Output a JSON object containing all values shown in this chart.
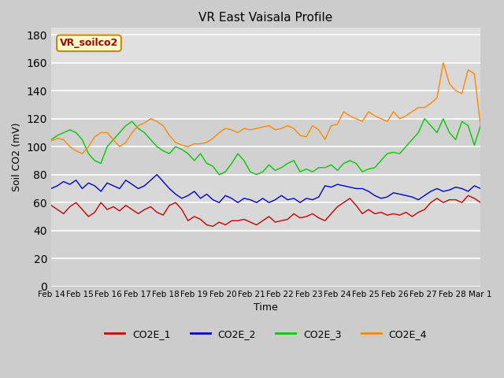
{
  "title": "VR East Vaisala Profile",
  "xlabel": "Time",
  "ylabel": "Soil CO2 (mV)",
  "ylim": [
    0,
    185
  ],
  "yticks": [
    0,
    20,
    40,
    60,
    80,
    100,
    120,
    140,
    160,
    180
  ],
  "annotation": "VR_soilco2",
  "series_colors": [
    "#cc0000",
    "#0000cc",
    "#00cc00",
    "#ff8800"
  ],
  "series_names": [
    "CO2E_1",
    "CO2E_2",
    "CO2E_3",
    "CO2E_4"
  ],
  "x_labels": [
    "Feb 14",
    "Feb 15",
    "Feb 16",
    "Feb 17",
    "Feb 18",
    "Feb 19",
    "Feb 20",
    "Feb 21",
    "Feb 22",
    "Feb 23",
    "Feb 24",
    "Feb 25",
    "Feb 26",
    "Feb 27",
    "Feb 28",
    "Mar 1"
  ],
  "CO2E_1": [
    58,
    55,
    52,
    57,
    60,
    55,
    50,
    53,
    60,
    55,
    57,
    54,
    58,
    55,
    52,
    55,
    57,
    53,
    51,
    58,
    60,
    55,
    47,
    50,
    48,
    44,
    43,
    46,
    44,
    47,
    47,
    48,
    46,
    44,
    47,
    50,
    46,
    47,
    48,
    52,
    49,
    50,
    52,
    49,
    47,
    52,
    57,
    60,
    63,
    58,
    52,
    55,
    52,
    53,
    51,
    52,
    51,
    53,
    50,
    53,
    55,
    60,
    63,
    60,
    62,
    62,
    60,
    65,
    63,
    60
  ],
  "CO2E_2": [
    70,
    72,
    75,
    73,
    76,
    70,
    74,
    72,
    68,
    74,
    72,
    70,
    76,
    73,
    70,
    72,
    76,
    80,
    75,
    70,
    66,
    63,
    65,
    68,
    63,
    66,
    62,
    60,
    65,
    63,
    60,
    63,
    62,
    60,
    63,
    60,
    62,
    65,
    62,
    63,
    60,
    63,
    62,
    64,
    72,
    71,
    73,
    72,
    71,
    70,
    70,
    68,
    65,
    63,
    64,
    67,
    66,
    65,
    64,
    62,
    65,
    68,
    70,
    68,
    69,
    71,
    70,
    68,
    72,
    70
  ],
  "CO2E_3": [
    105,
    108,
    110,
    112,
    110,
    105,
    95,
    90,
    88,
    100,
    105,
    110,
    115,
    118,
    113,
    110,
    105,
    100,
    97,
    95,
    100,
    98,
    95,
    90,
    95,
    88,
    86,
    80,
    82,
    88,
    95,
    90,
    82,
    80,
    82,
    87,
    83,
    85,
    88,
    90,
    82,
    84,
    82,
    85,
    85,
    87,
    83,
    88,
    90,
    88,
    82,
    84,
    85,
    90,
    95,
    96,
    95,
    100,
    105,
    110,
    120,
    115,
    110,
    120,
    110,
    105,
    118,
    115,
    101,
    115
  ],
  "CO2E_4": [
    104,
    106,
    105,
    100,
    97,
    95,
    100,
    107,
    110,
    110,
    105,
    100,
    103,
    110,
    115,
    117,
    120,
    118,
    115,
    108,
    103,
    101,
    100,
    102,
    102,
    103,
    106,
    110,
    113,
    112,
    110,
    113,
    112,
    113,
    114,
    115,
    112,
    113,
    115,
    113,
    108,
    107,
    115,
    112,
    105,
    115,
    116,
    125,
    122,
    120,
    118,
    125,
    122,
    120,
    118,
    125,
    120,
    122,
    125,
    128,
    128,
    131,
    135,
    160,
    145,
    140,
    138,
    155,
    152,
    115
  ],
  "n_points": 70
}
